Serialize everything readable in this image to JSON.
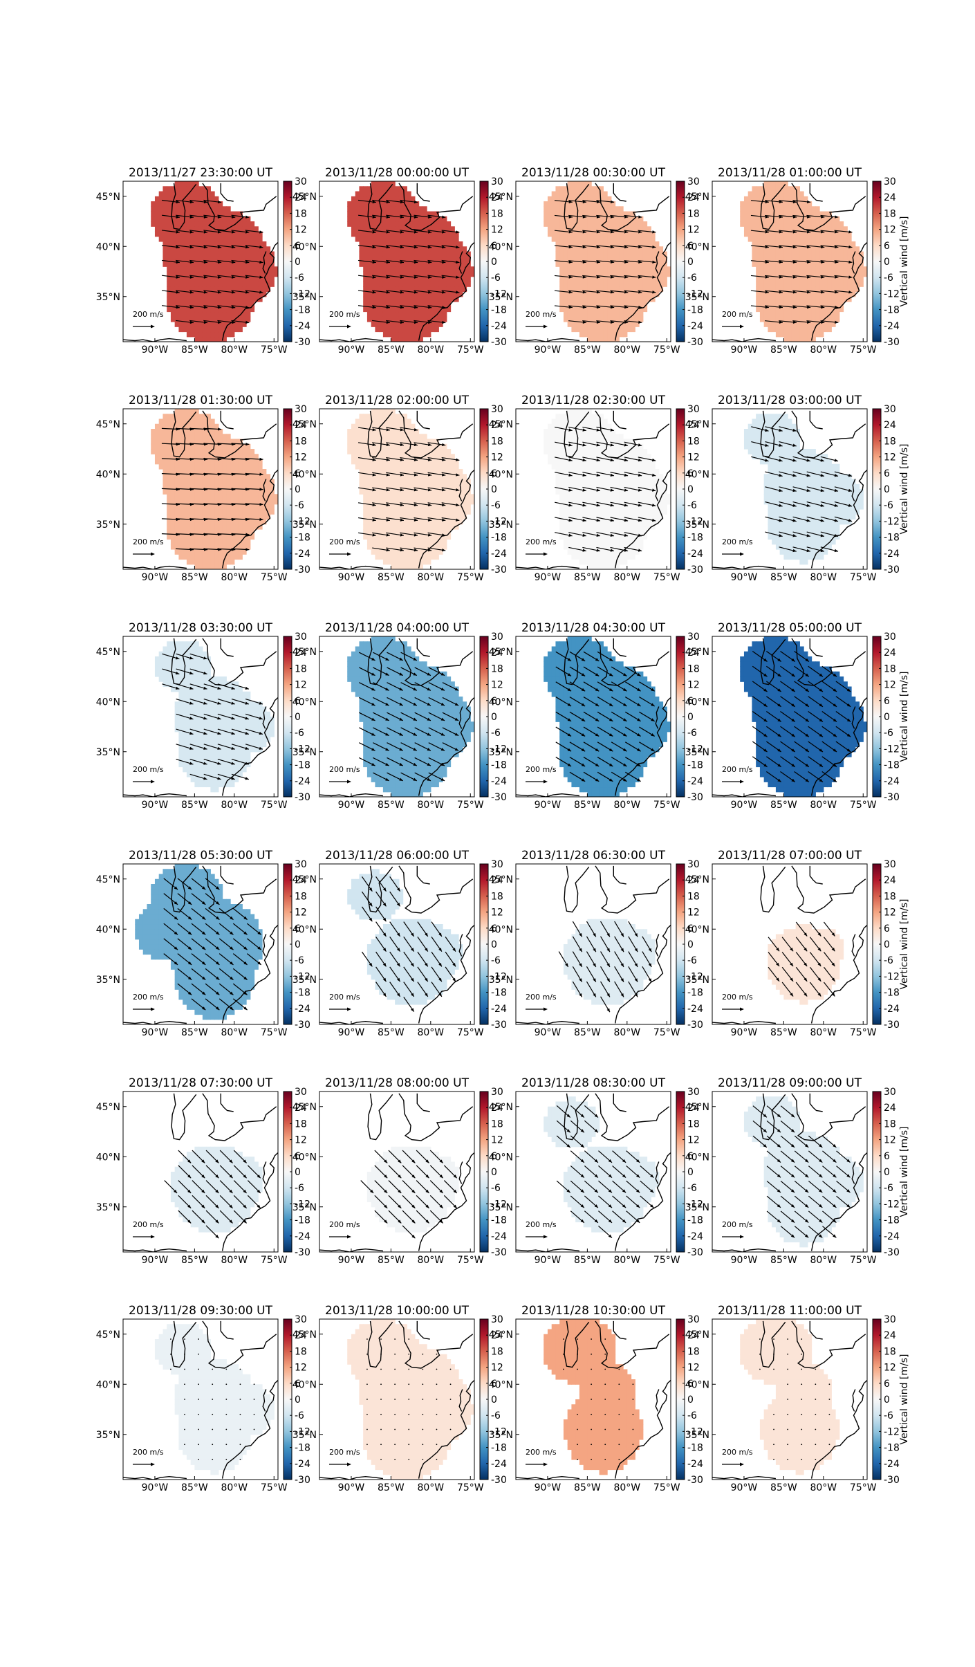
{
  "chart_data": {
    "type": "heatmap",
    "layout": {
      "rows": 6,
      "cols": 4
    },
    "colormap": "RdBu_r",
    "colorbar": {
      "label": "Vertical wind [m/s]",
      "range": [
        -30,
        30
      ],
      "ticks": [
        "30",
        "24",
        "18",
        "12",
        "6",
        "0",
        "-6",
        "-12",
        "-18",
        "-24",
        "-30"
      ],
      "colors": [
        "#053061",
        "#2166ac",
        "#4393c3",
        "#92c5de",
        "#d1e5f0",
        "#f7f7f7",
        "#fddbc7",
        "#f4a582",
        "#d6604d",
        "#b2182b",
        "#67001f"
      ]
    },
    "map": {
      "lon_range": [
        -94,
        -74.5
      ],
      "lat_range": [
        30.5,
        46.5
      ],
      "lon_ticks": [
        "90°W",
        "85°W",
        "80°W",
        "75°W"
      ],
      "lon_tick_values": [
        -90,
        -85,
        -80,
        -75
      ],
      "lat_ticks": [
        "45°N",
        "40°N",
        "35°N"
      ],
      "lat_tick_values": [
        45,
        40,
        35
      ]
    },
    "reference_arrow_label": "200 m/s",
    "panels": [
      {
        "title": "2013/11/27 23:30:00 UT",
        "value": 20,
        "region": "full",
        "arrow": [
          1,
          0.12
        ]
      },
      {
        "title": "2013/11/28 00:00:00 UT",
        "value": 20,
        "region": "full",
        "arrow": [
          1,
          0.12
        ]
      },
      {
        "title": "2013/11/28 00:30:00 UT",
        "value": 10,
        "region": "full",
        "arrow": [
          1,
          0.1
        ]
      },
      {
        "title": "2013/11/28 01:00:00 UT",
        "value": 10,
        "region": "full",
        "arrow": [
          1,
          0.1
        ]
      },
      {
        "title": "2013/11/28 01:30:00 UT",
        "value": 10,
        "region": "full",
        "arrow": [
          1,
          0.05
        ]
      },
      {
        "title": "2013/11/28 02:00:00 UT",
        "value": 5,
        "region": "full",
        "arrow": [
          1,
          0.15
        ]
      },
      {
        "title": "2013/11/28 02:30:00 UT",
        "value": 0,
        "region": "full",
        "arrow": [
          1,
          0.2
        ]
      },
      {
        "title": "2013/11/28 03:00:00 UT",
        "value": -5,
        "region": "split",
        "arrow": [
          1,
          0.25
        ]
      },
      {
        "title": "2013/11/28 03:30:00 UT",
        "value": -5,
        "region": "split",
        "arrow": [
          1,
          0.3
        ]
      },
      {
        "title": "2013/11/28 04:00:00 UT",
        "value": -15,
        "region": "full",
        "arrow": [
          1,
          0.5
        ]
      },
      {
        "title": "2013/11/28 04:30:00 UT",
        "value": -18,
        "region": "full",
        "arrow": [
          1,
          0.6
        ]
      },
      {
        "title": "2013/11/28 05:00:00 UT",
        "value": -24,
        "region": "full",
        "arrow": [
          1,
          0.7
        ]
      },
      {
        "title": "2013/11/28 05:30:00 UT",
        "value": -15,
        "region": "wide",
        "arrow": [
          1,
          0.8
        ]
      },
      {
        "title": "2013/11/28 06:00:00 UT",
        "value": -6,
        "region": "lakes-south",
        "arrow": [
          0.7,
          1
        ]
      },
      {
        "title": "2013/11/28 06:30:00 UT",
        "value": -4,
        "region": "south",
        "arrow": [
          0.6,
          1
        ]
      },
      {
        "title": "2013/11/28 07:00:00 UT",
        "value": 4,
        "region": "small-south",
        "arrow": [
          0.7,
          0.9
        ]
      },
      {
        "title": "2013/11/28 07:30:00 UT",
        "value": -4,
        "region": "south",
        "arrow": [
          0.8,
          0.8
        ]
      },
      {
        "title": "2013/11/28 08:00:00 UT",
        "value": -1,
        "region": "south",
        "arrow": [
          0.8,
          0.8
        ]
      },
      {
        "title": "2013/11/28 08:30:00 UT",
        "value": -4,
        "region": "lakes-south",
        "arrow": [
          0.8,
          0.7
        ]
      },
      {
        "title": "2013/11/28 09:00:00 UT",
        "value": -4,
        "region": "split",
        "arrow": [
          0.6,
          0.5
        ]
      },
      {
        "title": "2013/11/28 09:30:00 UT",
        "value": -2,
        "region": "split",
        "arrow": [
          0,
          0.15
        ]
      },
      {
        "title": "2013/11/28 10:00:00 UT",
        "value": 4,
        "region": "full",
        "arrow": [
          0,
          0.15
        ]
      },
      {
        "title": "2013/11/28 10:30:00 UT",
        "value": 12,
        "region": "figure8",
        "arrow": [
          0,
          0.15
        ]
      },
      {
        "title": "2013/11/28 11:00:00 UT",
        "value": 4,
        "region": "figure8",
        "arrow": [
          0,
          0.15
        ]
      }
    ]
  }
}
